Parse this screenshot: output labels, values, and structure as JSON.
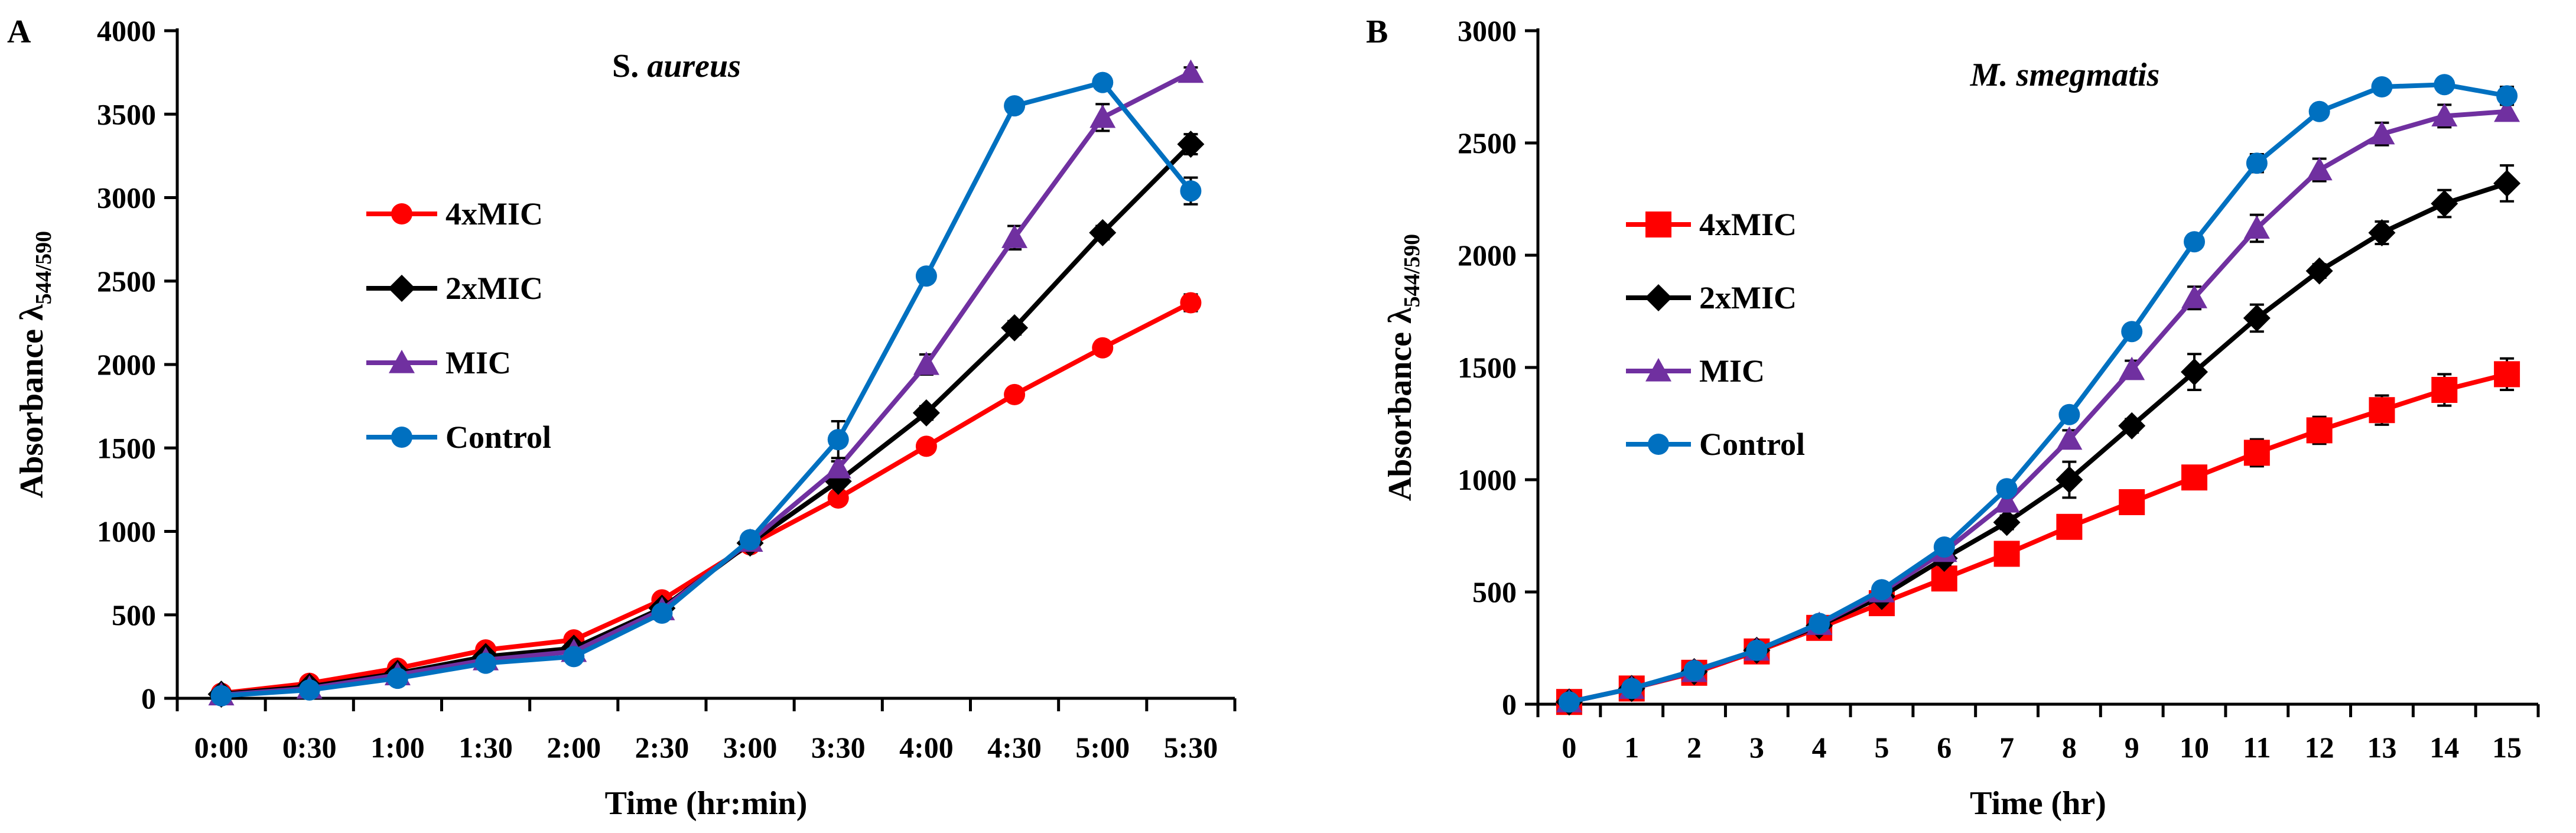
{
  "chart_data": [
    {
      "panel": "A",
      "type": "line",
      "title": "S. aureus",
      "title_parts": [
        {
          "text": "S. ",
          "italic": false
        },
        {
          "text": "aureus",
          "italic": true
        }
      ],
      "xlabel": "Time (hr:min)",
      "ylabel_main": "Absorbance λ",
      "ylabel_sub": "544/590",
      "categories": [
        "0:00",
        "0:30",
        "1:00",
        "1:30",
        "2:00",
        "2:30",
        "3:00",
        "3:30",
        "4:00",
        "4:30",
        "5:00",
        "5:30"
      ],
      "ylim": [
        0,
        4000
      ],
      "yticks": [
        0,
        500,
        1000,
        1500,
        2000,
        2500,
        3000,
        3500,
        4000
      ],
      "grid": false,
      "legend_position": "left-middle",
      "series": [
        {
          "name": "4xMIC",
          "color": "#ff0000",
          "marker": "circle",
          "values": [
            30,
            90,
            180,
            290,
            350,
            590,
            920,
            1200,
            1510,
            1820,
            2100,
            2370
          ],
          "errors": [
            10,
            10,
            15,
            15,
            15,
            20,
            20,
            25,
            30,
            30,
            40,
            50
          ]
        },
        {
          "name": "2xMIC",
          "color": "#000000",
          "marker": "diamond",
          "values": [
            25,
            70,
            150,
            250,
            300,
            540,
            930,
            1300,
            1710,
            2220,
            2790,
            3320
          ],
          "errors": [
            10,
            10,
            15,
            15,
            15,
            20,
            20,
            30,
            40,
            40,
            40,
            60
          ]
        },
        {
          "name": "MIC",
          "color": "#7030a0",
          "marker": "triangle",
          "values": [
            20,
            60,
            140,
            230,
            280,
            530,
            940,
            1380,
            2000,
            2760,
            3480,
            3750
          ],
          "errors": [
            10,
            10,
            15,
            15,
            15,
            20,
            25,
            40,
            60,
            70,
            80,
            30
          ]
        },
        {
          "name": "Control",
          "color": "#0070c0",
          "marker": "circle",
          "values": [
            15,
            50,
            120,
            210,
            250,
            510,
            950,
            1550,
            2530,
            3550,
            3690,
            3040
          ],
          "errors": [
            10,
            10,
            15,
            15,
            15,
            20,
            25,
            110,
            40,
            30,
            40,
            80
          ]
        }
      ]
    },
    {
      "panel": "B",
      "type": "line",
      "title": "M. smegmatis",
      "title_parts": [
        {
          "text": "M. smegmatis",
          "italic": true
        }
      ],
      "xlabel": "Time (hr)",
      "ylabel_main": "Absorbance λ",
      "ylabel_sub": "544/590",
      "categories": [
        "0",
        "1",
        "2",
        "3",
        "4",
        "5",
        "6",
        "7",
        "8",
        "9",
        "10",
        "11",
        "12",
        "13",
        "14",
        "15"
      ],
      "ylim": [
        0,
        3000
      ],
      "yticks": [
        0,
        500,
        1000,
        1500,
        2000,
        2500,
        3000
      ],
      "grid": false,
      "legend_position": "left-middle",
      "series": [
        {
          "name": "4xMIC",
          "color": "#ff0000",
          "marker": "square",
          "values": [
            10,
            70,
            140,
            235,
            340,
            450,
            560,
            670,
            790,
            900,
            1010,
            1120,
            1220,
            1310,
            1400,
            1470
          ],
          "errors": [
            10,
            10,
            15,
            15,
            20,
            25,
            30,
            30,
            30,
            40,
            50,
            60,
            60,
            65,
            70,
            70
          ]
        },
        {
          "name": "2xMIC",
          "color": "#000000",
          "marker": "diamond",
          "values": [
            10,
            70,
            145,
            240,
            350,
            480,
            650,
            810,
            1000,
            1240,
            1480,
            1720,
            1930,
            2100,
            2230,
            2320
          ],
          "errors": [
            10,
            10,
            15,
            15,
            20,
            25,
            30,
            30,
            80,
            30,
            80,
            60,
            30,
            50,
            60,
            80
          ]
        },
        {
          "name": "MIC",
          "color": "#7030a0",
          "marker": "triangle",
          "values": [
            10,
            70,
            145,
            240,
            355,
            500,
            680,
            900,
            1180,
            1490,
            1810,
            2120,
            2380,
            2540,
            2620,
            2640
          ],
          "errors": [
            10,
            10,
            15,
            15,
            20,
            25,
            30,
            30,
            40,
            40,
            50,
            60,
            50,
            50,
            50,
            40
          ]
        },
        {
          "name": "Control",
          "color": "#0070c0",
          "marker": "circle",
          "values": [
            10,
            70,
            150,
            240,
            360,
            510,
            700,
            960,
            1290,
            1660,
            2060,
            2410,
            2640,
            2750,
            2760,
            2710
          ],
          "errors": [
            10,
            10,
            15,
            15,
            20,
            25,
            30,
            30,
            30,
            30,
            30,
            40,
            20,
            30,
            30,
            40
          ]
        }
      ]
    }
  ]
}
